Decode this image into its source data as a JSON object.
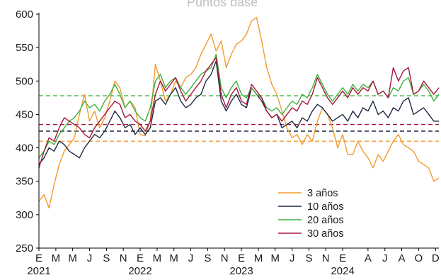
{
  "chart_data": {
    "type": "line",
    "title": "Puntos base",
    "xlabel": "",
    "ylabel": "",
    "ylim": [
      250,
      600
    ],
    "yticks": [
      250,
      300,
      350,
      400,
      450,
      500,
      550,
      600
    ],
    "xlim": [
      2021.0,
      2024.95
    ],
    "month_labels": [
      "E",
      "M",
      "M",
      "J",
      "S",
      "N",
      "E",
      "M",
      "M",
      "J",
      "S",
      "N",
      "E",
      "M",
      "M",
      "J",
      "S",
      "N",
      "E",
      "A",
      "J",
      "A",
      "O",
      "D"
    ],
    "month_label_positions": [
      2021.0,
      2021.167,
      2021.333,
      2021.5,
      2021.667,
      2021.833,
      2022.0,
      2022.167,
      2022.333,
      2022.5,
      2022.667,
      2022.833,
      2023.0,
      2023.167,
      2023.333,
      2023.5,
      2023.667,
      2023.833,
      2024.0,
      2024.25,
      2024.417,
      2024.583,
      2024.75,
      2024.917
    ],
    "year_labels": [
      "2021",
      "2022",
      "2023",
      "2024"
    ],
    "year_label_positions": [
      2021.0,
      2022.0,
      2023.0,
      2024.0
    ],
    "legend": {
      "position": "bottom-right"
    },
    "grid": false,
    "series": [
      {
        "name": "3 años",
        "color": "#f39a2b",
        "average": 410,
        "x": [
          2021.0,
          2021.05,
          2021.1,
          2021.15,
          2021.2,
          2021.25,
          2021.3,
          2021.35,
          2021.4,
          2021.45,
          2021.5,
          2021.55,
          2021.6,
          2021.65,
          2021.7,
          2021.75,
          2021.8,
          2021.85,
          2021.9,
          2021.95,
          2022.0,
          2022.05,
          2022.1,
          2022.15,
          2022.2,
          2022.25,
          2022.3,
          2022.35,
          2022.4,
          2022.45,
          2022.5,
          2022.55,
          2022.6,
          2022.65,
          2022.7,
          2022.75,
          2022.8,
          2022.85,
          2022.9,
          2022.95,
          2023.0,
          2023.05,
          2023.1,
          2023.15,
          2023.2,
          2023.25,
          2023.3,
          2023.35,
          2023.4,
          2023.45,
          2023.5,
          2023.55,
          2023.6,
          2023.65,
          2023.7,
          2023.75,
          2023.8,
          2023.85,
          2023.9,
          2023.95,
          2024.0,
          2024.05,
          2024.1,
          2024.15,
          2024.2,
          2024.25,
          2024.3,
          2024.35,
          2024.4,
          2024.45,
          2024.5,
          2024.55,
          2024.6,
          2024.65,
          2024.7,
          2024.75,
          2024.8,
          2024.85,
          2024.9,
          2024.95
        ],
        "values": [
          320,
          330,
          310,
          345,
          375,
          395,
          405,
          415,
          450,
          480,
          440,
          455,
          430,
          445,
          470,
          500,
          490,
          460,
          470,
          460,
          420,
          418,
          440,
          525,
          500,
          470,
          480,
          500,
          490,
          505,
          510,
          520,
          540,
          555,
          570,
          545,
          560,
          520,
          540,
          555,
          560,
          570,
          590,
          595,
          560,
          520,
          495,
          480,
          455,
          430,
          415,
          420,
          405,
          420,
          410,
          440,
          460,
          450,
          430,
          400,
          420,
          390,
          390,
          410,
          395,
          385,
          370,
          390,
          380,
          395,
          410,
          420,
          405,
          400,
          395,
          380,
          375,
          370,
          350,
          355
        ]
      },
      {
        "name": "10 años",
        "color": "#1f2a44",
        "average": 425,
        "x": [
          2021.0,
          2021.05,
          2021.1,
          2021.15,
          2021.2,
          2021.25,
          2021.3,
          2021.35,
          2021.4,
          2021.45,
          2021.5,
          2021.55,
          2021.6,
          2021.65,
          2021.7,
          2021.75,
          2021.8,
          2021.85,
          2021.9,
          2021.95,
          2022.0,
          2022.05,
          2022.1,
          2022.15,
          2022.2,
          2022.25,
          2022.3,
          2022.35,
          2022.4,
          2022.45,
          2022.5,
          2022.55,
          2022.6,
          2022.65,
          2022.7,
          2022.75,
          2022.8,
          2022.85,
          2022.9,
          2022.95,
          2023.0,
          2023.05,
          2023.1,
          2023.15,
          2023.2,
          2023.25,
          2023.3,
          2023.35,
          2023.4,
          2023.45,
          2023.5,
          2023.55,
          2023.6,
          2023.65,
          2023.7,
          2023.75,
          2023.8,
          2023.85,
          2023.9,
          2023.95,
          2024.0,
          2024.05,
          2024.1,
          2024.15,
          2024.2,
          2024.25,
          2024.3,
          2024.35,
          2024.4,
          2024.45,
          2024.5,
          2024.55,
          2024.6,
          2024.65,
          2024.7,
          2024.75,
          2024.8,
          2024.85,
          2024.9,
          2024.95
        ],
        "values": [
          375,
          385,
          400,
          395,
          410,
          405,
          395,
          390,
          385,
          400,
          410,
          420,
          415,
          425,
          440,
          455,
          445,
          430,
          435,
          420,
          430,
          420,
          430,
          470,
          475,
          465,
          480,
          490,
          470,
          460,
          465,
          475,
          480,
          500,
          510,
          530,
          470,
          455,
          470,
          480,
          465,
          460,
          490,
          480,
          470,
          455,
          445,
          450,
          430,
          435,
          440,
          430,
          445,
          440,
          455,
          465,
          460,
          450,
          440,
          445,
          450,
          440,
          455,
          445,
          460,
          455,
          470,
          450,
          455,
          445,
          460,
          455,
          470,
          475,
          450,
          455,
          460,
          450,
          440,
          440
        ]
      },
      {
        "name": "20 años",
        "color": "#3db23a",
        "average": 478,
        "x": [
          2021.0,
          2021.05,
          2021.1,
          2021.15,
          2021.2,
          2021.25,
          2021.3,
          2021.35,
          2021.4,
          2021.45,
          2021.5,
          2021.55,
          2021.6,
          2021.65,
          2021.7,
          2021.75,
          2021.8,
          2021.85,
          2021.9,
          2021.95,
          2022.0,
          2022.05,
          2022.1,
          2022.15,
          2022.2,
          2022.25,
          2022.3,
          2022.35,
          2022.4,
          2022.45,
          2022.5,
          2022.55,
          2022.6,
          2022.65,
          2022.7,
          2022.75,
          2022.8,
          2022.85,
          2022.9,
          2022.95,
          2023.0,
          2023.05,
          2023.1,
          2023.15,
          2023.2,
          2023.25,
          2023.3,
          2023.35,
          2023.4,
          2023.45,
          2023.5,
          2023.55,
          2023.6,
          2023.65,
          2023.7,
          2023.75,
          2023.8,
          2023.85,
          2023.9,
          2023.95,
          2024.0,
          2024.05,
          2024.1,
          2024.15,
          2024.2,
          2024.25,
          2024.3,
          2024.35,
          2024.4,
          2024.45,
          2024.5,
          2024.55,
          2024.6,
          2024.65,
          2024.7,
          2024.75,
          2024.8,
          2024.85,
          2024.9,
          2024.95
        ],
        "values": [
          385,
          395,
          410,
          405,
          420,
          430,
          440,
          445,
          455,
          470,
          460,
          465,
          455,
          470,
          480,
          495,
          480,
          460,
          470,
          455,
          445,
          440,
          460,
          500,
          510,
          490,
          500,
          505,
          490,
          480,
          490,
          500,
          510,
          515,
          520,
          540,
          490,
          475,
          490,
          500,
          480,
          475,
          490,
          480,
          475,
          460,
          455,
          460,
          450,
          460,
          470,
          465,
          480,
          475,
          490,
          510,
          495,
          480,
          470,
          480,
          490,
          480,
          495,
          485,
          495,
          490,
          500,
          480,
          485,
          475,
          490,
          485,
          500,
          505,
          480,
          485,
          495,
          485,
          470,
          480
        ]
      },
      {
        "name": "30 años",
        "color": "#a8163f",
        "average": 435,
        "x": [
          2021.0,
          2021.05,
          2021.1,
          2021.15,
          2021.2,
          2021.25,
          2021.3,
          2021.35,
          2021.4,
          2021.45,
          2021.5,
          2021.55,
          2021.6,
          2021.65,
          2021.7,
          2021.75,
          2021.8,
          2021.85,
          2021.9,
          2021.95,
          2022.0,
          2022.05,
          2022.1,
          2022.15,
          2022.2,
          2022.25,
          2022.3,
          2022.35,
          2022.4,
          2022.45,
          2022.5,
          2022.55,
          2022.6,
          2022.65,
          2022.7,
          2022.75,
          2022.8,
          2022.85,
          2022.9,
          2022.95,
          2023.0,
          2023.05,
          2023.1,
          2023.15,
          2023.2,
          2023.25,
          2023.3,
          2023.35,
          2023.4,
          2023.45,
          2023.5,
          2023.55,
          2023.6,
          2023.65,
          2023.7,
          2023.75,
          2023.8,
          2023.85,
          2023.9,
          2023.95,
          2024.0,
          2024.05,
          2024.1,
          2024.15,
          2024.2,
          2024.25,
          2024.3,
          2024.35,
          2024.4,
          2024.45,
          2024.5,
          2024.55,
          2024.6,
          2024.65,
          2024.7,
          2024.75,
          2024.8,
          2024.85,
          2024.9,
          2024.95
        ],
        "values": [
          370,
          395,
          415,
          410,
          430,
          445,
          440,
          435,
          430,
          420,
          415,
          430,
          440,
          450,
          460,
          470,
          465,
          445,
          450,
          440,
          435,
          425,
          440,
          480,
          500,
          485,
          495,
          505,
          485,
          470,
          480,
          490,
          500,
          515,
          525,
          535,
          480,
          460,
          480,
          490,
          470,
          465,
          495,
          485,
          475,
          455,
          445,
          450,
          440,
          450,
          460,
          455,
          470,
          465,
          480,
          505,
          490,
          475,
          465,
          475,
          485,
          475,
          490,
          480,
          490,
          485,
          500,
          480,
          485,
          475,
          520,
          500,
          515,
          520,
          480,
          485,
          500,
          490,
          480,
          490
        ]
      }
    ]
  }
}
